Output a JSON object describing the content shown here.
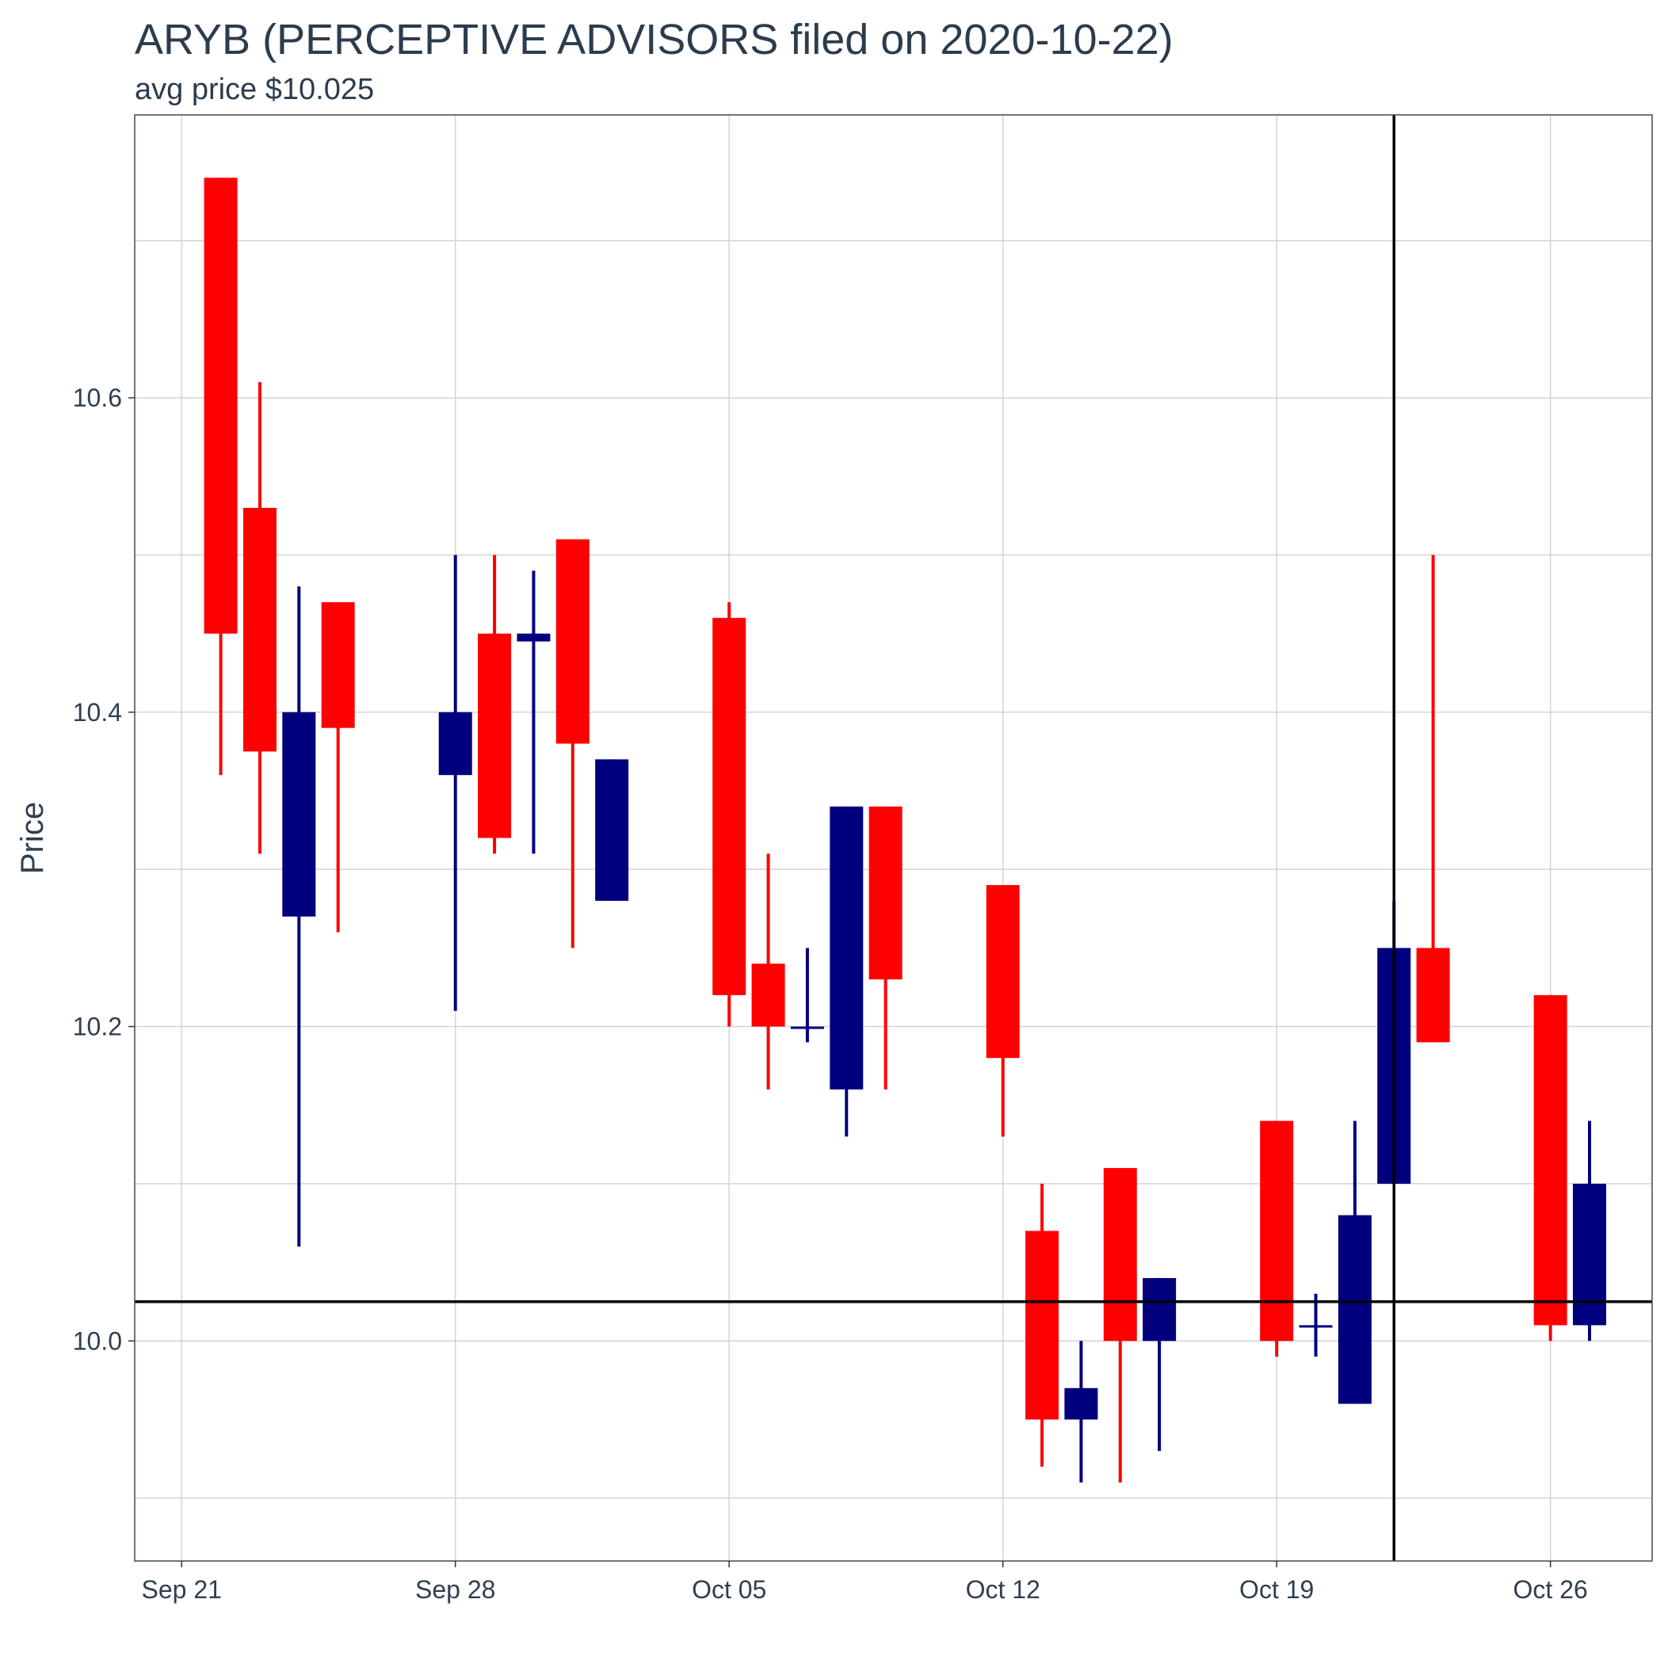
{
  "chart_data": {
    "type": "candlestick",
    "title": "ARYB (PERCEPTIVE ADVISORS filed on 2020-10-22)",
    "subtitle": "avg price $10.025",
    "xlabel": "",
    "ylabel": "Price",
    "x_tick_labels": [
      "Sep 21",
      "Sep 28",
      "Oct 05",
      "Oct 12",
      "Oct 19",
      "Oct 26"
    ],
    "x_tick_dates": [
      "2020-09-21",
      "2020-09-28",
      "2020-10-05",
      "2020-10-12",
      "2020-10-19",
      "2020-10-26"
    ],
    "y_tick_labels": [
      "10.0",
      "10.2",
      "10.4",
      "10.6"
    ],
    "y_ticks": [
      10.0,
      10.2,
      10.4,
      10.6
    ],
    "xlim": [
      "2020-09-19.8",
      "2020-10-28.6"
    ],
    "ylim": [
      9.86,
      10.78
    ],
    "grid": true,
    "reference_lines": {
      "horizontal_price": 10.025,
      "vertical_date": "2020-10-22"
    },
    "colors": {
      "up": "#00007f",
      "down": "#ff0000",
      "reference_line": "#000000",
      "grid": "#d4d4d4",
      "panel_border": "#3a4a5c"
    },
    "candles": [
      {
        "date": "2020-09-22",
        "open": 10.74,
        "high": 10.74,
        "low": 10.36,
        "close": 10.45
      },
      {
        "date": "2020-09-23",
        "open": 10.53,
        "high": 10.61,
        "low": 10.31,
        "close": 10.375
      },
      {
        "date": "2020-09-24",
        "open": 10.27,
        "high": 10.48,
        "low": 10.06,
        "close": 10.4
      },
      {
        "date": "2020-09-25",
        "open": 10.47,
        "high": 10.47,
        "low": 10.26,
        "close": 10.39
      },
      {
        "date": "2020-09-28",
        "open": 10.36,
        "high": 10.5,
        "low": 10.21,
        "close": 10.4
      },
      {
        "date": "2020-09-29",
        "open": 10.45,
        "high": 10.5,
        "low": 10.31,
        "close": 10.32
      },
      {
        "date": "2020-09-30",
        "open": 10.445,
        "high": 10.49,
        "low": 10.31,
        "close": 10.45
      },
      {
        "date": "2020-10-01",
        "open": 10.51,
        "high": 10.51,
        "low": 10.25,
        "close": 10.38
      },
      {
        "date": "2020-10-02",
        "open": 10.28,
        "high": 10.37,
        "low": 10.28,
        "close": 10.37
      },
      {
        "date": "2020-10-05",
        "open": 10.46,
        "high": 10.47,
        "low": 10.2,
        "close": 10.22
      },
      {
        "date": "2020-10-06",
        "open": 10.24,
        "high": 10.31,
        "low": 10.16,
        "close": 10.2
      },
      {
        "date": "2020-10-07",
        "open": 10.2,
        "high": 10.25,
        "low": 10.19,
        "close": 10.2
      },
      {
        "date": "2020-10-08",
        "open": 10.16,
        "high": 10.34,
        "low": 10.13,
        "close": 10.34
      },
      {
        "date": "2020-10-09",
        "open": 10.34,
        "high": 10.34,
        "low": 10.16,
        "close": 10.23
      },
      {
        "date": "2020-10-12",
        "open": 10.29,
        "high": 10.29,
        "low": 10.13,
        "close": 10.18
      },
      {
        "date": "2020-10-13",
        "open": 10.07,
        "high": 10.1,
        "low": 9.92,
        "close": 9.95
      },
      {
        "date": "2020-10-14",
        "open": 9.95,
        "high": 10.0,
        "low": 9.91,
        "close": 9.97
      },
      {
        "date": "2020-10-15",
        "open": 10.11,
        "high": 10.11,
        "low": 9.91,
        "close": 10.0
      },
      {
        "date": "2020-10-16",
        "open": 10.0,
        "high": 10.04,
        "low": 9.93,
        "close": 10.04
      },
      {
        "date": "2020-10-19",
        "open": 10.14,
        "high": 10.14,
        "low": 9.99,
        "close": 10.0
      },
      {
        "date": "2020-10-20",
        "open": 10.01,
        "high": 10.03,
        "low": 9.99,
        "close": 10.01
      },
      {
        "date": "2020-10-21",
        "open": 9.96,
        "high": 10.14,
        "low": 9.96,
        "close": 10.08
      },
      {
        "date": "2020-10-22",
        "open": 10.1,
        "high": 10.28,
        "low": 10.1,
        "close": 10.25
      },
      {
        "date": "2020-10-23",
        "open": 10.25,
        "high": 10.5,
        "low": 10.19,
        "close": 10.19
      },
      {
        "date": "2020-10-26",
        "open": 10.22,
        "high": 10.22,
        "low": 10.0,
        "close": 10.01
      },
      {
        "date": "2020-10-27",
        "open": 10.01,
        "high": 10.14,
        "low": 10.0,
        "close": 10.1
      }
    ]
  }
}
